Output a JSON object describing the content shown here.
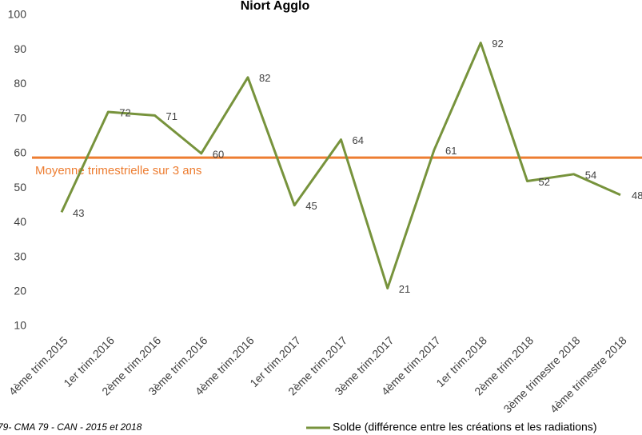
{
  "chart_data": {
    "type": "line",
    "title": "Niort Agglo",
    "categories": [
      "4ème trim.2015",
      "1er trim.2016",
      "2ème trim.2016",
      "3ème trim.2016",
      "4ème trim.2016",
      "1er trim.2017",
      "2ème trim.2017",
      "3ème trim.2017",
      "4ème trim.2017",
      "1er trim.2018",
      "2ème trim.2018",
      "3ème trimestre 2018",
      "4ème trimestre 2018"
    ],
    "series": [
      {
        "name": "Solde (différence entre les créations et les radiations)",
        "color": "#77933c",
        "values": [
          43,
          72,
          71,
          60,
          82,
          45,
          64,
          21,
          61,
          92,
          52,
          54,
          48
        ]
      }
    ],
    "average": {
      "value": 58.8,
      "label": "Moyenne trimestrielle sur 3 ans",
      "color": "#ed7d31"
    },
    "ylim": [
      10,
      100
    ],
    "yticks": [
      10,
      20,
      30,
      40,
      50,
      60,
      70,
      80,
      90,
      100
    ],
    "source": "79- CMA 79 - CAN - 2015 et 2018"
  }
}
